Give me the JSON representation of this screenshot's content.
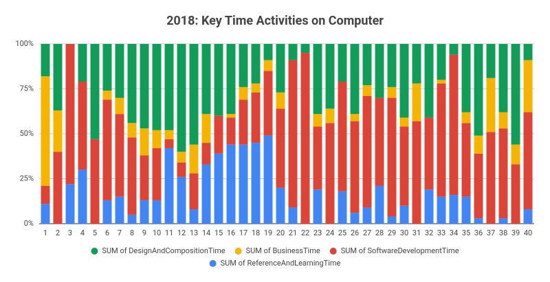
{
  "chart_data": {
    "type": "stacked-bar-100",
    "title": "2018: Key Time Activities on Computer",
    "categories": [
      "1",
      "2",
      "3",
      "4",
      "5",
      "6",
      "7",
      "8",
      "9",
      "10",
      "11",
      "12",
      "13",
      "14",
      "15",
      "16",
      "17",
      "18",
      "19",
      "20",
      "21",
      "22",
      "23",
      "24",
      "25",
      "26",
      "27",
      "28",
      "29",
      "30",
      "31",
      "32",
      "33",
      "34",
      "35",
      "36",
      "37",
      "38",
      "39",
      "40"
    ],
    "series": [
      {
        "name": "SUM of DesignAndCompositionTime",
        "color": "#119d58",
        "values": [
          18,
          37,
          0,
          21,
          53,
          26,
          30,
          44,
          47,
          48,
          48,
          60,
          56,
          39,
          40,
          39,
          24,
          22,
          9,
          27,
          9,
          5,
          39,
          36,
          21,
          39,
          23,
          30,
          24,
          41,
          22,
          41,
          20,
          6,
          38,
          51,
          19,
          38,
          56,
          9
        ]
      },
      {
        "name": "SUM of BusinessTime",
        "color": "#f4b400",
        "values": [
          61,
          23,
          0,
          0,
          0,
          5,
          9,
          8,
          15,
          10,
          5,
          6,
          16,
          16,
          0,
          2,
          7,
          5,
          6,
          9,
          0,
          0,
          7,
          8,
          0,
          4,
          6,
          0,
          6,
          5,
          21,
          0,
          2,
          0,
          6,
          10,
          30,
          9,
          11,
          29
        ]
      },
      {
        "name": "SUM of SoftwareDevelopmentTime",
        "color": "#db4437",
        "values": [
          10,
          40,
          78,
          49,
          47,
          56,
          46,
          43,
          25,
          29,
          5,
          8,
          20,
          12,
          21,
          15,
          25,
          28,
          36,
          44,
          82,
          95,
          35,
          56,
          61,
          51,
          62,
          49,
          66,
          44,
          57,
          40,
          63,
          78,
          41,
          36,
          51,
          50,
          33,
          54
        ]
      },
      {
        "name": "SUM of ReferenceAndLearningTime",
        "color": "#4285f4",
        "values": [
          11,
          0,
          22,
          30,
          0,
          13,
          15,
          5,
          13,
          13,
          42,
          26,
          8,
          33,
          39,
          44,
          44,
          45,
          49,
          20,
          9,
          0,
          19,
          0,
          18,
          6,
          9,
          21,
          4,
          10,
          0,
          19,
          15,
          16,
          15,
          3,
          0,
          3,
          0,
          8
        ]
      }
    ],
    "ylim": [
      0,
      100
    ],
    "yticks": [
      {
        "value": 0,
        "label": "0%"
      },
      {
        "value": 25,
        "label": "25%"
      },
      {
        "value": 50,
        "label": "50%"
      },
      {
        "value": 75,
        "label": "75%"
      },
      {
        "value": 100,
        "label": "100%"
      }
    ],
    "grid": true
  }
}
